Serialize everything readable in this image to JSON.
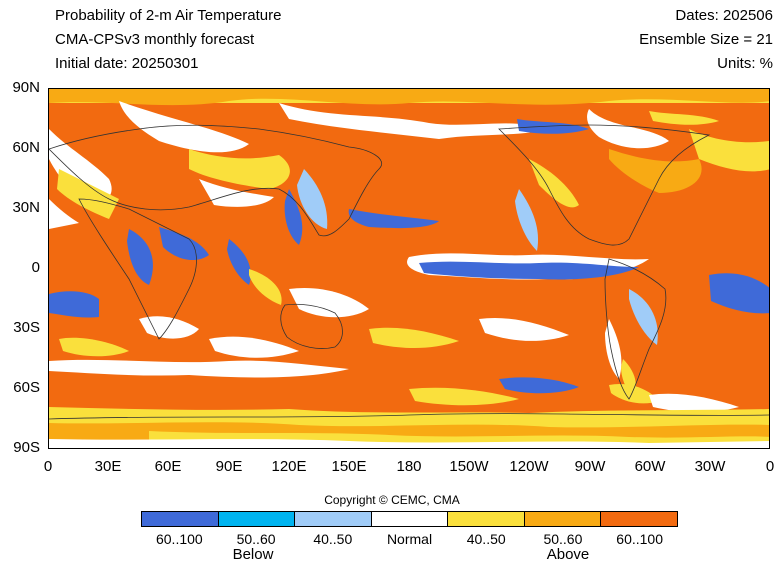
{
  "header": {
    "title": "Probability of 2-m Air Temperature",
    "model": "CMA-CPSv3 monthly forecast",
    "initial_date": "Initial date: 20250301",
    "dates": "Dates: 202506",
    "ensemble": "Ensemble Size = 21",
    "units": "Units: %"
  },
  "axes": {
    "y_ticks": [
      "90N",
      "60N",
      "30N",
      "0",
      "30S",
      "60S",
      "90S"
    ],
    "x_ticks": [
      "0",
      "30E",
      "60E",
      "90E",
      "120E",
      "150E",
      "180",
      "150W",
      "120W",
      "90W",
      "60W",
      "30W",
      "0"
    ]
  },
  "copyright": "Copyright © CEMC, CMA",
  "legend": {
    "items": [
      {
        "label": "60..100",
        "color": "#3f6ad8"
      },
      {
        "label": "50..60",
        "color": "#00b4f0"
      },
      {
        "label": "40..50",
        "color": "#a0ccf8"
      },
      {
        "label": "Normal",
        "color": "#ffffff"
      },
      {
        "label": "40..50",
        "color": "#fae03c"
      },
      {
        "label": "50..60",
        "color": "#f8aa14"
      },
      {
        "label": "60..100",
        "color": "#f26a10"
      }
    ],
    "below_label": "Below",
    "above_label": "Above"
  },
  "colors": {
    "above_strong": "#f26a10",
    "above_mid": "#f8aa14",
    "above_weak": "#fae03c",
    "normal": "#ffffff",
    "below_weak": "#a0ccf8",
    "below_mid": "#00b4f0",
    "below_strong": "#3f6ad8"
  }
}
